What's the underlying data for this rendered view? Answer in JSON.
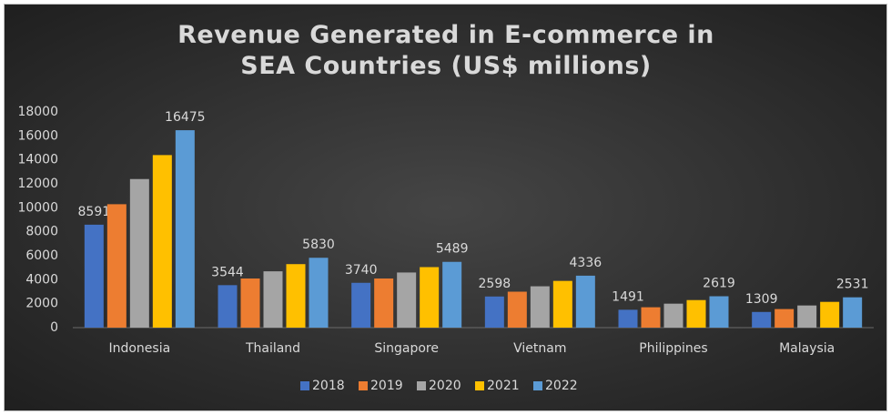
{
  "chart_data": {
    "type": "bar",
    "title": "Revenue Generated in E-commerce in SEA Countries (US$ millions)",
    "categories": [
      "Indonesia",
      "Thailand",
      "Singapore",
      "Vietnam",
      "Philippines",
      "Malaysia"
    ],
    "series": [
      {
        "name": "2018",
        "color": "#4472c4",
        "data_labels": true,
        "values": [
          8591,
          3544,
          3740,
          2598,
          1491,
          1309
        ]
      },
      {
        "name": "2019",
        "color": "#ed7d31",
        "data_labels": false,
        "values": [
          10300,
          4100,
          4100,
          3000,
          1700,
          1550
        ]
      },
      {
        "name": "2020",
        "color": "#a5a5a5",
        "data_labels": false,
        "values": [
          12400,
          4700,
          4600,
          3450,
          2000,
          1850
        ]
      },
      {
        "name": "2021",
        "color": "#ffc000",
        "data_labels": false,
        "values": [
          14400,
          5300,
          5050,
          3900,
          2300,
          2150
        ]
      },
      {
        "name": "2022",
        "color": "#5b9bd5",
        "data_labels": true,
        "values": [
          16475,
          5830,
          5489,
          4336,
          2619,
          2531
        ]
      }
    ],
    "ylim": [
      0,
      18000
    ],
    "yticks": [
      0,
      2000,
      4000,
      6000,
      8000,
      10000,
      12000,
      14000,
      16000,
      18000
    ],
    "grid": false,
    "legend": "bottom"
  }
}
